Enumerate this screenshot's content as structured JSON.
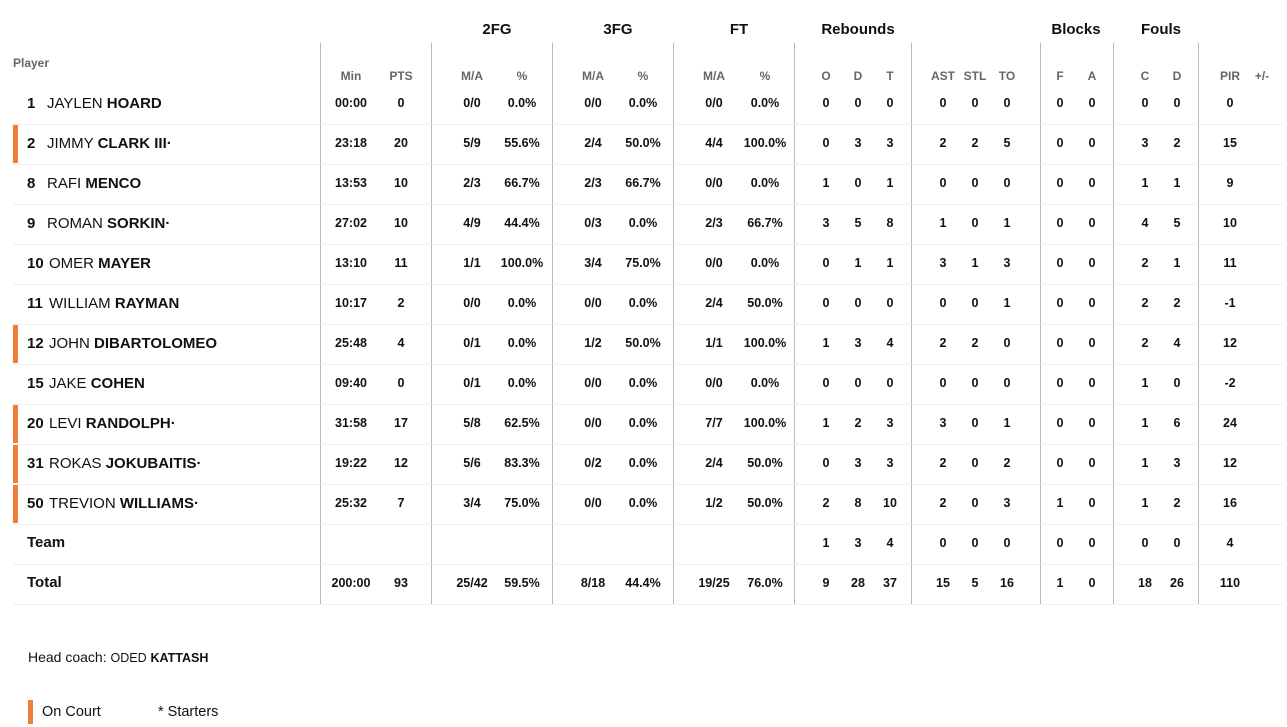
{
  "header": {
    "player": "Player",
    "groups": [
      "2FG",
      "3FG",
      "FT",
      "Rebounds",
      "Blocks",
      "Fouls"
    ],
    "subs": [
      "Min",
      "PTS",
      "M/A",
      "%",
      "M/A",
      "%",
      "M/A",
      "%",
      "O",
      "D",
      "T",
      "AST",
      "STL",
      "TO",
      "F",
      "A",
      "C",
      "D",
      "PIR",
      "+/-"
    ]
  },
  "players": [
    {
      "num": "1",
      "first": "JAYLEN",
      "last": "HOARD",
      "starter": "",
      "on_court": false,
      "stats": [
        "00:00",
        "0",
        "0/0",
        "0.0%",
        "0/0",
        "0.0%",
        "0/0",
        "0.0%",
        "0",
        "0",
        "0",
        "0",
        "0",
        "0",
        "0",
        "0",
        "0",
        "0",
        "0",
        ""
      ]
    },
    {
      "num": "2",
      "first": "JIMMY",
      "last": "CLARK III",
      "starter": "·",
      "on_court": true,
      "stats": [
        "23:18",
        "20",
        "5/9",
        "55.6%",
        "2/4",
        "50.0%",
        "4/4",
        "100.0%",
        "0",
        "3",
        "3",
        "2",
        "2",
        "5",
        "0",
        "0",
        "3",
        "2",
        "15",
        ""
      ]
    },
    {
      "num": "8",
      "first": "RAFI",
      "last": "MENCO",
      "starter": "",
      "on_court": false,
      "stats": [
        "13:53",
        "10",
        "2/3",
        "66.7%",
        "2/3",
        "66.7%",
        "0/0",
        "0.0%",
        "1",
        "0",
        "1",
        "0",
        "0",
        "0",
        "0",
        "0",
        "1",
        "1",
        "9",
        ""
      ]
    },
    {
      "num": "9",
      "first": "ROMAN",
      "last": "SORKIN",
      "starter": "·",
      "on_court": false,
      "stats": [
        "27:02",
        "10",
        "4/9",
        "44.4%",
        "0/3",
        "0.0%",
        "2/3",
        "66.7%",
        "3",
        "5",
        "8",
        "1",
        "0",
        "1",
        "0",
        "0",
        "4",
        "5",
        "10",
        ""
      ]
    },
    {
      "num": "10",
      "first": "OMER",
      "last": "MAYER",
      "starter": "",
      "on_court": false,
      "stats": [
        "13:10",
        "11",
        "1/1",
        "100.0%",
        "3/4",
        "75.0%",
        "0/0",
        "0.0%",
        "0",
        "1",
        "1",
        "3",
        "1",
        "3",
        "0",
        "0",
        "2",
        "1",
        "11",
        ""
      ]
    },
    {
      "num": "11",
      "first": "WILLIAM",
      "last": "RAYMAN",
      "starter": "",
      "on_court": false,
      "stats": [
        "10:17",
        "2",
        "0/0",
        "0.0%",
        "0/0",
        "0.0%",
        "2/4",
        "50.0%",
        "0",
        "0",
        "0",
        "0",
        "0",
        "1",
        "0",
        "0",
        "2",
        "2",
        "-1",
        ""
      ]
    },
    {
      "num": "12",
      "first": "JOHN",
      "last": "DIBARTOLOMEO",
      "starter": "",
      "on_court": true,
      "stats": [
        "25:48",
        "4",
        "0/1",
        "0.0%",
        "1/2",
        "50.0%",
        "1/1",
        "100.0%",
        "1",
        "3",
        "4",
        "2",
        "2",
        "0",
        "0",
        "0",
        "2",
        "4",
        "12",
        ""
      ]
    },
    {
      "num": "15",
      "first": "JAKE",
      "last": "COHEN",
      "starter": "",
      "on_court": false,
      "stats": [
        "09:40",
        "0",
        "0/1",
        "0.0%",
        "0/0",
        "0.0%",
        "0/0",
        "0.0%",
        "0",
        "0",
        "0",
        "0",
        "0",
        "0",
        "0",
        "0",
        "1",
        "0",
        "-2",
        ""
      ]
    },
    {
      "num": "20",
      "first": "LEVI",
      "last": "RANDOLPH",
      "starter": "·",
      "on_court": true,
      "stats": [
        "31:58",
        "17",
        "5/8",
        "62.5%",
        "0/0",
        "0.0%",
        "7/7",
        "100.0%",
        "1",
        "2",
        "3",
        "3",
        "0",
        "1",
        "0",
        "0",
        "1",
        "6",
        "24",
        ""
      ]
    },
    {
      "num": "31",
      "first": "ROKAS",
      "last": "JOKUBAITIS",
      "starter": "·",
      "on_court": true,
      "stats": [
        "19:22",
        "12",
        "5/6",
        "83.3%",
        "0/2",
        "0.0%",
        "2/4",
        "50.0%",
        "0",
        "3",
        "3",
        "2",
        "0",
        "2",
        "0",
        "0",
        "1",
        "3",
        "12",
        ""
      ]
    },
    {
      "num": "50",
      "first": "TREVION",
      "last": "WILLIAMS",
      "starter": "·",
      "on_court": true,
      "stats": [
        "25:32",
        "7",
        "3/4",
        "75.0%",
        "0/0",
        "0.0%",
        "1/2",
        "50.0%",
        "2",
        "8",
        "10",
        "2",
        "0",
        "3",
        "1",
        "0",
        "1",
        "2",
        "16",
        ""
      ]
    }
  ],
  "team": {
    "label": "Team",
    "stats": [
      "",
      "",
      "",
      "",
      "",
      "",
      "",
      "",
      "1",
      "3",
      "4",
      "0",
      "0",
      "0",
      "0",
      "0",
      "0",
      "0",
      "4",
      ""
    ]
  },
  "total": {
    "label": "Total",
    "stats": [
      "200:00",
      "93",
      "25/42",
      "59.5%",
      "8/18",
      "44.4%",
      "19/25",
      "76.0%",
      "9",
      "28",
      "37",
      "15",
      "5",
      "16",
      "1",
      "0",
      "18",
      "26",
      "110",
      ""
    ]
  },
  "coach": {
    "label": "Head coach:",
    "first": "ODED",
    "last": "KATTASH"
  },
  "legend": {
    "on_court": "On Court",
    "starters": "* Starters"
  },
  "colors": {
    "on_court": "#f07d3a",
    "divider": "#b9b9b9",
    "subheader": "#666666"
  }
}
